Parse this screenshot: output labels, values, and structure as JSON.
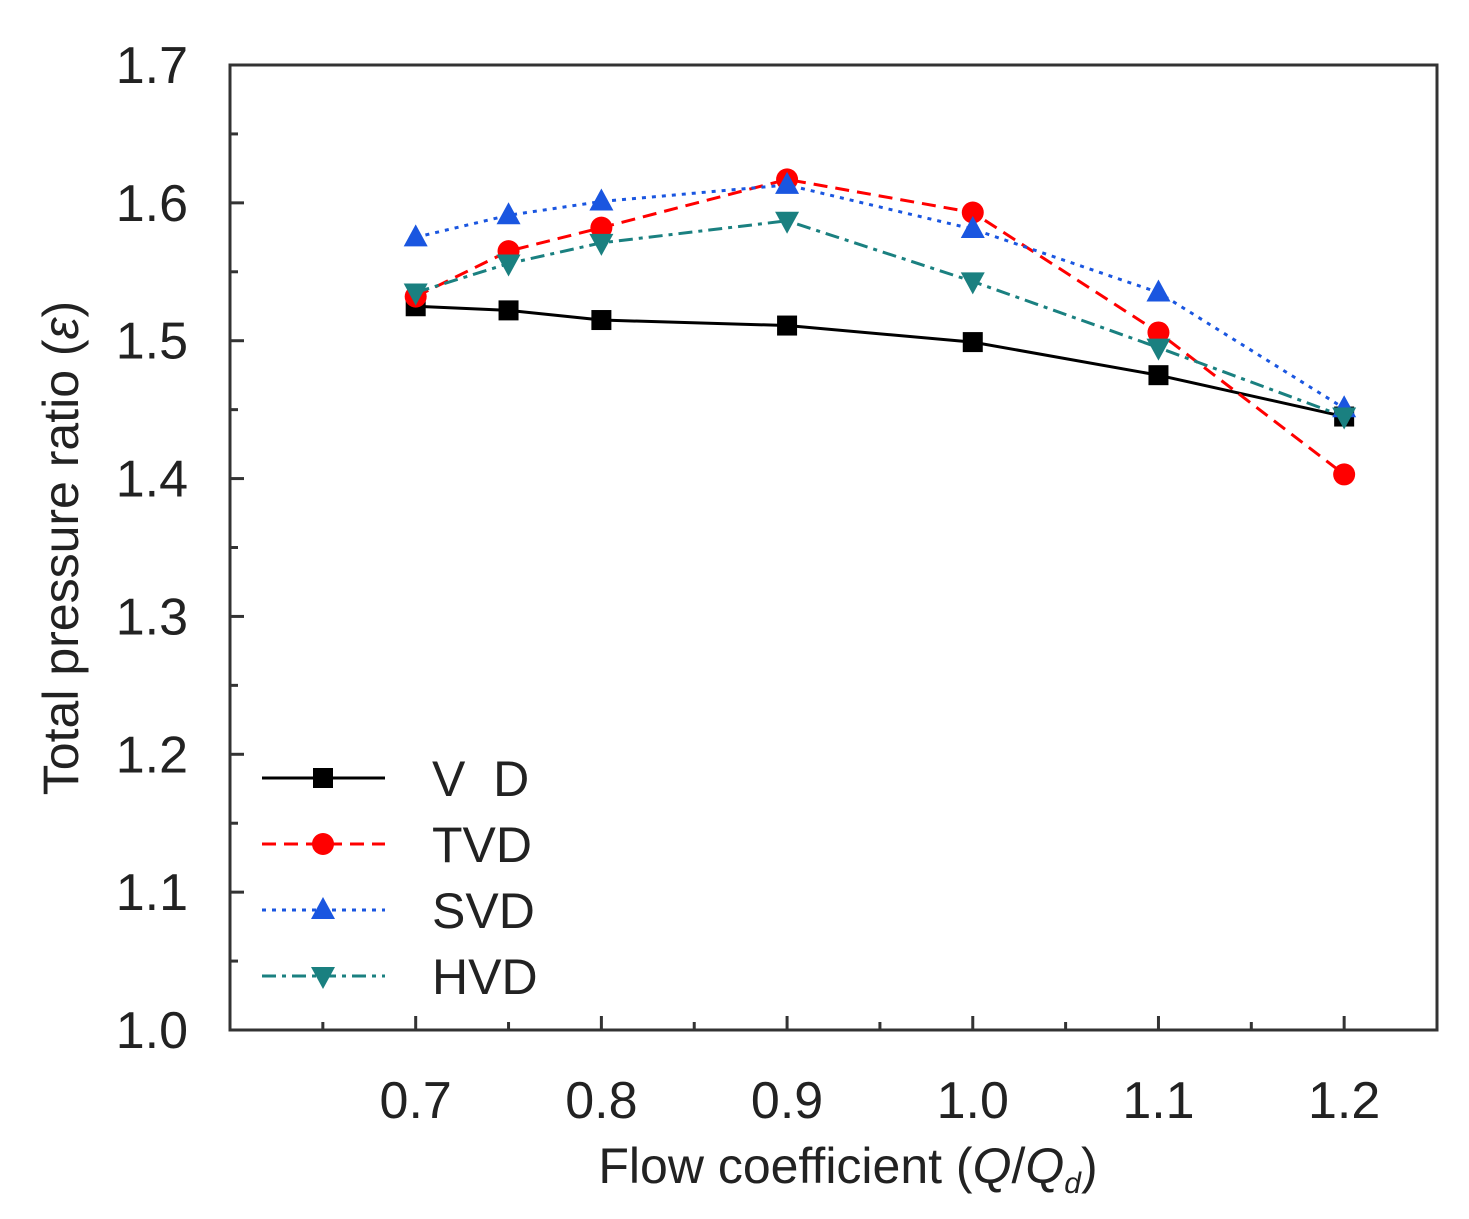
{
  "chart_data": {
    "type": "line",
    "title": "",
    "xlabel": "Flow coefficient (Q/Qd)",
    "xlabel_parts": {
      "prefix": "Flow coefficient (",
      "q": "Q",
      "slash": "/",
      "qd": "Q",
      "sub": "d",
      "suffix": ")"
    },
    "ylabel": "Total pressure ratio (ε)",
    "ylabel_parts": {
      "prefix": "Total pressure ratio (",
      "symbol": "ε",
      "suffix": ")"
    },
    "xlim": [
      0.6,
      1.25
    ],
    "ylim": [
      1.0,
      1.7
    ],
    "x_ticks": [
      0.7,
      0.8,
      0.9,
      1.0,
      1.1,
      1.2
    ],
    "x_tick_labels": [
      "0.7",
      "0.8",
      "0.9",
      "1.0",
      "1.1",
      "1.2"
    ],
    "y_ticks": [
      1.0,
      1.1,
      1.2,
      1.3,
      1.4,
      1.5,
      1.6,
      1.7
    ],
    "y_tick_labels": [
      "1.0",
      "1.1",
      "1.2",
      "1.3",
      "1.4",
      "1.5",
      "1.6",
      "1.7"
    ],
    "grid": false,
    "legend_position": "bottom-left",
    "series": [
      {
        "name": "V  D",
        "color": "#000000",
        "marker": "square",
        "line_style": "solid",
        "x": [
          0.7,
          0.75,
          0.8,
          0.9,
          1.0,
          1.1,
          1.2
        ],
        "y": [
          1.525,
          1.522,
          1.515,
          1.511,
          1.499,
          1.475,
          1.445
        ]
      },
      {
        "name": "TVD",
        "color": "#ff0000",
        "marker": "circle",
        "line_style": "dashed",
        "x": [
          0.7,
          0.75,
          0.8,
          0.9,
          1.0,
          1.1,
          1.2
        ],
        "y": [
          1.532,
          1.565,
          1.582,
          1.617,
          1.593,
          1.506,
          1.403
        ]
      },
      {
        "name": "SVD",
        "color": "#1a56e0",
        "marker": "triangle-up",
        "line_style": "dotted",
        "x": [
          0.7,
          0.75,
          0.8,
          0.9,
          1.0,
          1.1,
          1.2
        ],
        "y": [
          1.575,
          1.591,
          1.601,
          1.613,
          1.581,
          1.535,
          1.451
        ]
      },
      {
        "name": "HVD",
        "color": "#1a8080",
        "marker": "triangle-down",
        "line_style": "dash-dot",
        "x": [
          0.7,
          0.75,
          0.8,
          0.9,
          1.0,
          1.1,
          1.2
        ],
        "y": [
          1.535,
          1.556,
          1.571,
          1.587,
          1.543,
          1.495,
          1.445
        ]
      }
    ]
  }
}
